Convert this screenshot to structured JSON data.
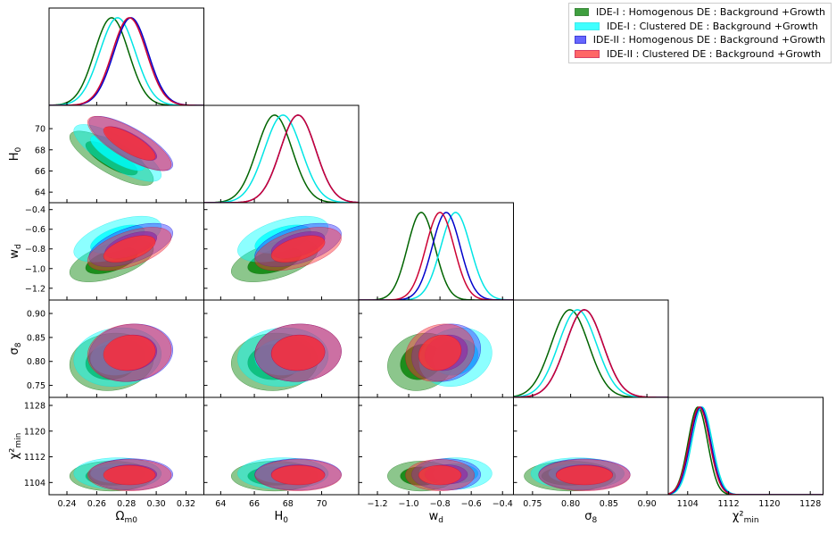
{
  "chart_data": {
    "type": "triangle-corner-plot",
    "parameters": [
      {
        "key": "om",
        "label": "Ω",
        "sub": "m0",
        "range": [
          0.228,
          0.332
        ],
        "ticks": [
          0.24,
          0.26,
          0.28,
          0.3,
          0.32
        ],
        "tick_labels": [
          "0.24",
          "0.26",
          "0.28",
          "0.30",
          "0.32"
        ]
      },
      {
        "key": "h0",
        "label": "H",
        "sub": "0",
        "range": [
          63.0,
          72.2
        ],
        "ticks": [
          64,
          66,
          68,
          70
        ],
        "tick_labels": [
          "64",
          "66",
          "68",
          "70"
        ]
      },
      {
        "key": "wd",
        "label": "w",
        "sub": "d",
        "range": [
          -1.32,
          -0.33
        ],
        "ticks": [
          -1.2,
          -1.0,
          -0.8,
          -0.6,
          -0.4
        ],
        "tick_labels": [
          "−1.2",
          "−1.0",
          "−0.8",
          "−0.6",
          "−0.4"
        ]
      },
      {
        "key": "s8",
        "label": "σ",
        "sub": "8",
        "range": [
          0.725,
          0.928
        ],
        "ticks": [
          0.75,
          0.8,
          0.85,
          0.9
        ],
        "tick_labels": [
          "0.75",
          "0.80",
          "0.85",
          "0.90"
        ]
      },
      {
        "key": "chi",
        "label": "χ²",
        "sub": "min",
        "range": [
          1100.2,
          1130.5
        ],
        "ticks": [
          1104,
          1112,
          1120,
          1128
        ],
        "tick_labels": [
          "1104",
          "1112",
          "1120",
          "1128"
        ],
        "ylabel": "χ²min",
        "xlabel": "χ²min"
      }
    ],
    "series": [
      {
        "name": "IDE-I : Homogenous DE : Background +Growth",
        "line": "#006400",
        "fill": "#008000",
        "mean": [
          0.27,
          67.2,
          -0.92,
          0.799,
          1106.0
        ],
        "sigma": [
          0.0115,
          1.05,
          0.088,
          0.0245,
          1.9
        ],
        "corr": {
          "om-h0": -0.78,
          "om-wd": 0.55,
          "h0-wd": 0.5,
          "om-s8": 0.1,
          "h0-s8": 0.05,
          "wd-s8": 0.15
        }
      },
      {
        "name": "IDE-I : Clustered DE : Background +Growth",
        "line": "#00e5e5",
        "fill": "#00ffff",
        "mean": [
          0.274,
          67.7,
          -0.7,
          0.809,
          1106.8
        ],
        "sigma": [
          0.012,
          1.1,
          0.095,
          0.025,
          2.0
        ],
        "corr": {
          "om-h0": -0.78,
          "om-wd": 0.55,
          "h0-wd": 0.5,
          "om-s8": 0.1,
          "h0-s8": 0.05,
          "wd-s8": 0.15
        }
      },
      {
        "name": "IDE-II : Homogenous DE : Background +Growth",
        "line": "#0000cc",
        "fill": "#3333ff",
        "mean": [
          0.283,
          68.6,
          -0.76,
          0.818,
          1106.5
        ],
        "sigma": [
          0.0115,
          1.05,
          0.09,
          0.0245,
          2.0
        ],
        "corr": {
          "om-h0": -0.78,
          "om-wd": 0.55,
          "h0-wd": 0.5,
          "om-s8": 0.1,
          "h0-s8": 0.05,
          "wd-s8": 0.15
        }
      },
      {
        "name": "IDE-II : Clustered DE : Background +Growth",
        "line": "#cc0033",
        "fill": "#ff3333",
        "mean": [
          0.282,
          68.6,
          -0.8,
          0.818,
          1106.3
        ],
        "sigma": [
          0.0115,
          1.05,
          0.09,
          0.0245,
          2.0
        ],
        "corr": {
          "om-h0": -0.78,
          "om-wd": 0.55,
          "h0-wd": 0.5,
          "om-s8": 0.1,
          "h0-s8": 0.05,
          "wd-s8": 0.15
        }
      }
    ],
    "legend_position": "top-right",
    "contour_levels": [
      "68%",
      "95%"
    ],
    "grid": false
  }
}
